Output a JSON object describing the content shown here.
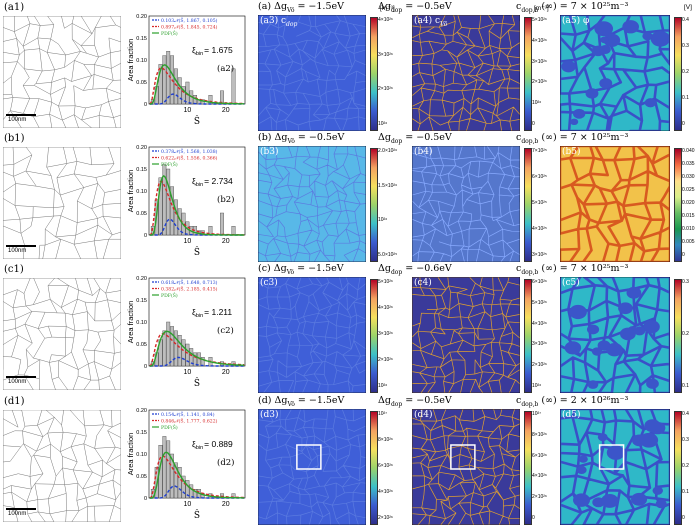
{
  "rows": [
    {
      "micro_label": "(a1)",
      "scalebar": "100nm",
      "hist_label": "(a2)",
      "xi": "ξ",
      "xi_sub": "bin",
      "xi_val": "= 1.675",
      "legend": [
        "0.103𝒩(Ŝ, 1.867, 0.105)",
        "0.897𝒩(Ŝ, 1.845, 0.724)",
        "PDF(Ŝ)"
      ],
      "header_left": "(a) Δg",
      "header_left_sub": "Vö",
      "header_left_val": "= −1.5eV",
      "header_mid": "Δg",
      "header_mid_sub": "dop",
      "header_mid_val": "= −0.5eV",
      "header_right": "c",
      "header_right_sub": "dop,b",
      "header_right_val": "(∞) = 7 × 10²⁵m⁻³",
      "map3_label": "(a3) c",
      "map3_sub": "dop",
      "map4_label": "(a4) c",
      "map4_sub": "Vö",
      "map5_label": "(a5) φ",
      "cb3_ticks": [
        "4×10²⁶",
        "3×10²⁶",
        "2×10²⁶",
        "10²⁶"
      ],
      "cb3_unit": "[m⁻³]",
      "cb4_ticks": [
        "5×10²⁶",
        "4×10²⁶",
        "3×10²⁶",
        "2×10²⁶",
        "10²⁶",
        "0"
      ],
      "cb4_unit": "[m⁻³]",
      "cb5_ticks": [
        "0.4",
        "0.3",
        "0.2",
        "0.1",
        "0"
      ],
      "cb5_unit": "[V]"
    },
    {
      "micro_label": "(b1)",
      "scalebar": "100nm",
      "hist_label": "(b2)",
      "xi": "ξ",
      "xi_sub": "bin",
      "xi_val": "= 2.734",
      "legend": [
        "0.378𝒩(Ŝ, 1.568, 1.038)",
        "0.622𝒩(Ŝ, 1.556, 0.366)",
        "PDF(Ŝ)"
      ],
      "header_left": "(b) Δg",
      "header_left_sub": "Vö",
      "header_left_val": "= −0.5eV",
      "header_mid": "Δg",
      "header_mid_sub": "dop",
      "header_mid_val": "= −0.5eV",
      "header_right": "c",
      "header_right_sub": "dop,b",
      "header_right_val": "(∞) = 7 × 10²⁵m⁻³",
      "map3_label": "(b3)",
      "map3_sub": "",
      "map4_label": "(b4)",
      "map4_sub": "",
      "map5_label": "(b5)",
      "cb3_ticks": [
        "2.0×10²⁶",
        "1.5×10²⁶",
        "10²⁶",
        "5.0×10²⁵"
      ],
      "cb3_unit": "",
      "cb4_ticks": [
        "7×10²⁵",
        "6×10²⁵",
        "5×10²⁵",
        "4×10²⁵",
        "3×10²⁵"
      ],
      "cb4_unit": "",
      "cb5_ticks": [
        "0.040",
        "0.035",
        "0.030",
        "0.025",
        "0.020",
        "0.015",
        "0.010",
        "0.005",
        "0"
      ],
      "cb5_unit": ""
    },
    {
      "micro_label": "(c1)",
      "scalebar": "100nm",
      "hist_label": "(c2)",
      "xi": "ξ",
      "xi_sub": "bin",
      "xi_val": "= 1.211",
      "legend": [
        "0.618𝒩(Ŝ, 1.648, 0.713)",
        "0.382𝒩(Ŝ, 2.185, 0.415)",
        "PDF(Ŝ)"
      ],
      "header_left": "(c) Δg",
      "header_left_sub": "Vö",
      "header_left_val": "= −1.5eV",
      "header_mid": "Δg",
      "header_mid_sub": "dop",
      "header_mid_val": "= −0.6eV",
      "header_right": "c",
      "header_right_sub": "dop,b",
      "header_right_val": "(∞) = 7 × 10²⁵m⁻³",
      "map3_label": "(c3)",
      "map3_sub": "",
      "map4_label": "(c4)",
      "map4_sub": "",
      "map5_label": "(c5)",
      "cb3_ticks": [
        "5×10²⁶",
        "4×10²⁶",
        "3×10²⁶",
        "2×10²⁶",
        "10²⁶"
      ],
      "cb3_unit": "",
      "cb4_ticks": [
        "6×10²⁶",
        "5×10²⁶",
        "4×10²⁶",
        "3×10²⁶",
        "2×10²⁶",
        "10²⁶"
      ],
      "cb4_unit": "",
      "cb5_ticks": [
        "0.3",
        "0.2",
        "0.1"
      ],
      "cb5_unit": ""
    },
    {
      "micro_label": "(d1)",
      "scalebar": "100nm",
      "hist_label": "(d2)",
      "xi": "ξ",
      "xi_sub": "bin",
      "xi_val": "= 0.889",
      "legend": [
        "0.154𝒩(Ŝ, 1.141, 0.84)",
        "0.846𝒩(Ŝ, 1.777, 0.622)",
        "PDF(Ŝ)"
      ],
      "header_left": "(d) Δg",
      "header_left_sub": "Vö",
      "header_left_val": "= −1.5eV",
      "header_mid": "Δg",
      "header_mid_sub": "dop",
      "header_mid_val": "= −0.5eV",
      "header_right": "c",
      "header_right_sub": "dop,b",
      "header_right_val": "(∞) = 2 × 10²⁶m⁻³",
      "map3_label": "(d3)",
      "map3_sub": "",
      "map4_label": "(d4)",
      "map4_sub": "",
      "map5_label": "(d5)",
      "cb3_ticks": [
        "10²⁷",
        "8×10²⁶",
        "6×10²⁶",
        "4×10²⁶",
        "2×10²⁶"
      ],
      "cb3_unit": "",
      "cb4_ticks": [
        "10²⁷",
        "8×10²⁶",
        "6×10²⁶",
        "4×10²⁶",
        "2×10²⁶",
        "0"
      ],
      "cb4_unit": "",
      "cb5_ticks": [
        "0.4",
        "0.3",
        "0.2",
        "0.1",
        "0"
      ],
      "cb5_unit": ""
    }
  ],
  "hist_axes": {
    "ylabel": "Area fraction",
    "xlabel": "Ŝ",
    "yticks": [
      "0.20",
      "0.15",
      "0.10",
      "0.05",
      "0"
    ],
    "xticks": [
      "10",
      "20"
    ]
  },
  "colors": {
    "pdf_green": "#2ca02c",
    "gauss_blue": "#1f3fd0",
    "gauss_red": "#d62728",
    "bar_gray": "#bdbdbd",
    "map_blue": "#3f5fd8",
    "map_dark": "#3a3a9a"
  },
  "chart_data": [
    {
      "type": "bar",
      "panel": "(a2)",
      "xlim": [
        0,
        25
      ],
      "ylim": [
        0,
        0.2
      ],
      "bins_x": [
        1,
        2,
        3,
        4,
        5,
        6,
        7,
        8,
        9,
        10,
        11,
        12,
        13,
        14,
        16,
        19,
        22
      ],
      "bins_y": [
        0.01,
        0.04,
        0.09,
        0.11,
        0.12,
        0.11,
        0.08,
        0.06,
        0.04,
        0.05,
        0.03,
        0.02,
        0.01,
        0.01,
        0.02,
        0.03,
        0.08
      ]
    },
    {
      "type": "bar",
      "panel": "(b2)",
      "xlim": [
        0,
        25
      ],
      "ylim": [
        0,
        0.2
      ],
      "bins_x": [
        1,
        2,
        3,
        4,
        5,
        6,
        7,
        8,
        9,
        10,
        11,
        12,
        13,
        14,
        16,
        19,
        22
      ],
      "bins_y": [
        0.02,
        0.08,
        0.13,
        0.16,
        0.15,
        0.11,
        0.08,
        0.06,
        0.05,
        0.03,
        0.02,
        0.02,
        0.01,
        0.01,
        0.02,
        0.05,
        0.02
      ]
    },
    {
      "type": "bar",
      "panel": "(c2)",
      "xlim": [
        0,
        25
      ],
      "ylim": [
        0,
        0.2
      ],
      "bins_x": [
        1,
        2,
        3,
        4,
        5,
        6,
        7,
        8,
        9,
        10,
        11,
        12,
        13,
        14,
        16,
        19,
        22
      ],
      "bins_y": [
        0.01,
        0.03,
        0.06,
        0.08,
        0.1,
        0.09,
        0.08,
        0.07,
        0.06,
        0.05,
        0.04,
        0.03,
        0.03,
        0.02,
        0.02,
        0.01,
        0.01
      ]
    },
    {
      "type": "bar",
      "panel": "(d2)",
      "xlim": [
        0,
        25
      ],
      "ylim": [
        0,
        0.2
      ],
      "bins_x": [
        1,
        2,
        3,
        4,
        5,
        6,
        7,
        8,
        9,
        10,
        11,
        12,
        13,
        14,
        16,
        19,
        22
      ],
      "bins_y": [
        0.02,
        0.07,
        0.12,
        0.14,
        0.13,
        0.1,
        0.08,
        0.07,
        0.05,
        0.04,
        0.03,
        0.02,
        0.02,
        0.01,
        0.01,
        0.01,
        0.01
      ]
    }
  ]
}
